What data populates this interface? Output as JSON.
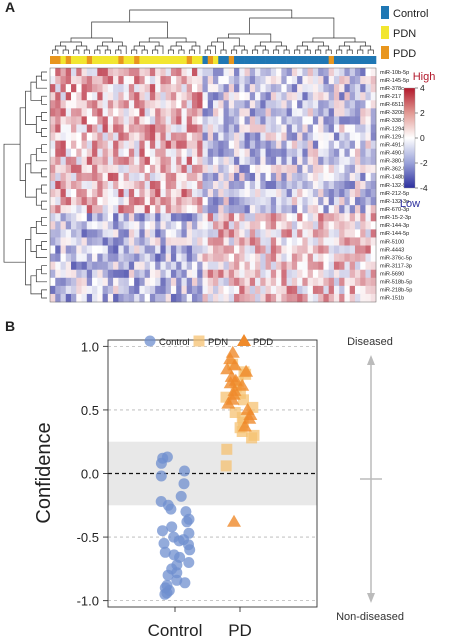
{
  "panel_a": {
    "letter": "A",
    "legend": [
      {
        "label": "Control",
        "color": "#1f77b4"
      },
      {
        "label": "PDN",
        "color": "#f2e630"
      },
      {
        "label": "PDD",
        "color": "#e8961e"
      }
    ],
    "colorbar": {
      "high_label": "High",
      "low_label": "Low",
      "high_color": "#b2182b",
      "low_color": "#2c2f9e",
      "ticks": [
        "4",
        "2",
        "0",
        "-2",
        "-4"
      ]
    }
  },
  "panel_b": {
    "letter": "B",
    "right_top": "Diseased",
    "right_bottom": "Non-diseased",
    "arrow_color": "#bbbbbb"
  },
  "chart_data": [
    {
      "type": "heatmap",
      "title": "",
      "group_bar": [
        "PDD",
        "PDD",
        "PDN",
        "PDD",
        "PDN",
        "PDN",
        "PDN",
        "PDD",
        "PDN",
        "PDN",
        "PDN",
        "PDN",
        "PDN",
        "PDD",
        "PDN",
        "PDN",
        "PDD",
        "PDN",
        "PDN",
        "PDN",
        "PDN",
        "PDN",
        "PDN",
        "PDN",
        "PDN",
        "PDN",
        "PDD",
        "PDN",
        "PDN",
        "Control",
        "PDD",
        "PDN",
        "Control",
        "Control",
        "PDD",
        "Control",
        "Control",
        "Control",
        "Control",
        "Control",
        "Control",
        "Control",
        "Control",
        "Control",
        "Control",
        "Control",
        "Control",
        "Control",
        "Control",
        "Control",
        "Control",
        "Control",
        "Control",
        "PDD",
        "Control",
        "Control",
        "Control",
        "Control",
        "Control",
        "Control",
        "Control",
        "Control"
      ],
      "rows": [
        "miR-10b-5p",
        "miR-145-5p",
        "miR-378c",
        "miR-217",
        "miR-6511a-5p",
        "miR-320b",
        "miR-338-5p",
        "miR-1294",
        "miR-129-5p",
        "miR-491-5p",
        "miR-490-5p",
        "miR-380-5p",
        "miR-362-5p",
        "miR-148b-3p",
        "miR-132-5p",
        "miR-212-5p",
        "miR-132-3p",
        "miR-670-3p",
        "miR-15-2-3p",
        "miR-144-3p",
        "miR-144-5p",
        "miR-5100",
        "miR-4443",
        "miR-376c-5p",
        "miR-3117-3p",
        "miR-5690",
        "miR-518b-5p",
        "miR-218b-5p",
        "miR-151b"
      ],
      "row_clusters": [
        18,
        11
      ],
      "colorbar_range": [
        -4,
        4
      ],
      "legend": [
        "Control",
        "PDN",
        "PDD"
      ]
    },
    {
      "type": "scatter",
      "title": "",
      "ylabel": "Confidence",
      "xlabel": "",
      "categories": [
        "Control",
        "PD"
      ],
      "ylim": [
        -1.05,
        1.05
      ],
      "yticks": [
        "1.0",
        "0.5",
        "0.0",
        "-0.5",
        "-1.0"
      ],
      "band": [
        -0.25,
        0.25
      ],
      "legend_position": "top",
      "series": [
        {
          "name": "Control",
          "marker": "circle",
          "color": "#6f8fcf",
          "category": "Control",
          "values": [
            0.13,
            0.12,
            0.08,
            0.02,
            -0.02,
            -0.08,
            -0.18,
            -0.22,
            -0.25,
            -0.28,
            -0.3,
            -0.36,
            -0.38,
            -0.42,
            -0.45,
            -0.47,
            -0.5,
            -0.52,
            -0.53,
            -0.55,
            -0.56,
            -0.6,
            -0.62,
            -0.64,
            -0.66,
            -0.7,
            -0.72,
            -0.75,
            -0.78,
            -0.8,
            -0.84,
            -0.86,
            -0.88,
            -0.9,
            -0.92,
            -0.94,
            -0.95
          ]
        },
        {
          "name": "PDN",
          "marker": "square",
          "color": "#f5c271",
          "category": "PD",
          "values": [
            0.86,
            0.8,
            0.78,
            0.72,
            0.68,
            0.63,
            0.6,
            0.58,
            0.52,
            0.48,
            0.44,
            0.4,
            0.36,
            0.33,
            0.3,
            0.28,
            0.19,
            0.06
          ]
        },
        {
          "name": "PDD",
          "marker": "triangle",
          "color": "#ef8a2a",
          "category": "PD",
          "values": [
            0.95,
            0.9,
            0.85,
            0.82,
            0.8,
            0.76,
            0.73,
            0.71,
            0.69,
            0.65,
            0.62,
            0.58,
            0.55,
            0.5,
            0.46,
            0.43,
            0.37,
            -0.38
          ]
        }
      ]
    }
  ]
}
